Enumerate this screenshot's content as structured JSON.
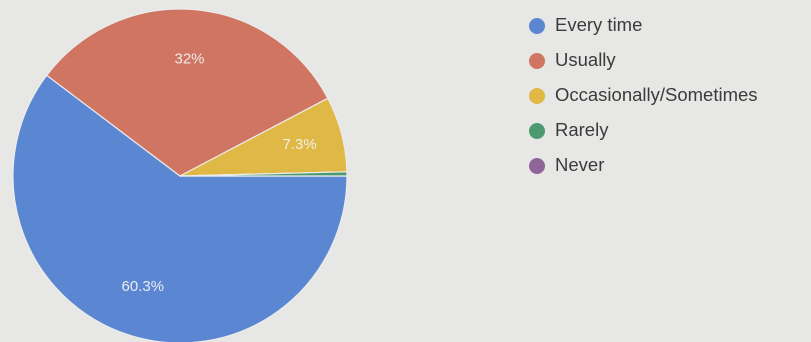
{
  "chart_data": {
    "type": "pie",
    "categories": [
      "Every time",
      "Usually",
      "Occasionally/Sometimes",
      "Rarely",
      "Never"
    ],
    "values": [
      60.3,
      32,
      7.3,
      0.4,
      0
    ],
    "data_labels": [
      "60.3%",
      "32%",
      "7.3%",
      "",
      ""
    ],
    "colors": [
      "#5b87d2",
      "#cf7562",
      "#e0b846",
      "#4c9a6f",
      "#8f6599"
    ],
    "legend_position": "right"
  }
}
